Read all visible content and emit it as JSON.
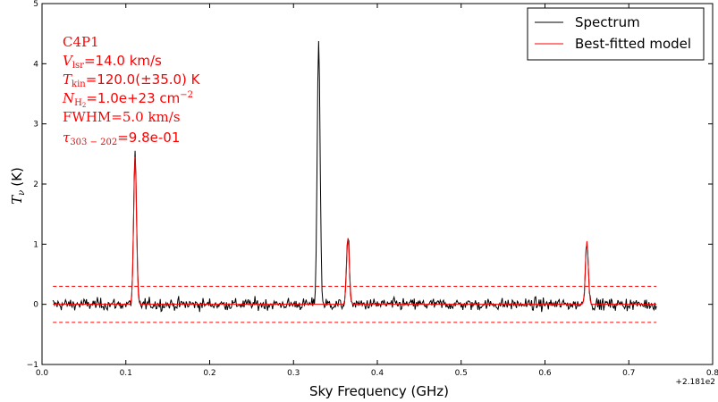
{
  "chart_data": {
    "type": "line",
    "xlabel": "Sky Frequency (GHz)",
    "ylabel": "T_ν (K)",
    "ylabel_symbol": "T",
    "ylabel_sub": "ν",
    "ylabel_unit": "(K)",
    "x_offset_label": "+2.181e2",
    "xlim": [
      0.0,
      0.8
    ],
    "ylim": [
      -1,
      5
    ],
    "x_ticks": [
      "0.0",
      "0.1",
      "0.2",
      "0.3",
      "0.4",
      "0.5",
      "0.6",
      "0.7",
      "0.8"
    ],
    "y_ticks": [
      "−1",
      "0",
      "1",
      "2",
      "3",
      "4",
      "5"
    ],
    "legend": {
      "placement": "top-right",
      "entries": [
        "Spectrum",
        "Best-fitted model"
      ]
    },
    "annotation": {
      "source": "C4P1",
      "vlsr": {
        "symbol": "V",
        "sub": "lsr",
        "value": "=14.0 km/s"
      },
      "tkin": {
        "symbol": "T",
        "sub": "kin",
        "value": "=120.0(±35.0) K"
      },
      "nh2": {
        "symbol": "N",
        "sub": "H",
        "subsub": "2",
        "value": "=1.0e+23 cm",
        "sup": "−2"
      },
      "fwhm": "FWHM=5.0 km/s",
      "tau": {
        "symbol": "τ",
        "sub": "303 − 202",
        "value": "=9.8e-01"
      }
    },
    "threshold_lines": [
      0.3,
      -0.3
    ],
    "colors": {
      "spectrum": "#000000",
      "model": "#ff0000"
    },
    "x_range": [
      0.013,
      0.733
    ],
    "noise_sigma": 0.1,
    "peaks": [
      {
        "x": 0.111,
        "spectrum_peak": 2.5,
        "model_peak": 2.45
      },
      {
        "x": 0.33,
        "spectrum_peak": 4.4,
        "model_peak": 0.0
      },
      {
        "x": 0.365,
        "spectrum_peak": 1.1,
        "model_peak": 1.1
      },
      {
        "x": 0.65,
        "spectrum_peak": 1.1,
        "model_peak": 1.05
      }
    ]
  }
}
